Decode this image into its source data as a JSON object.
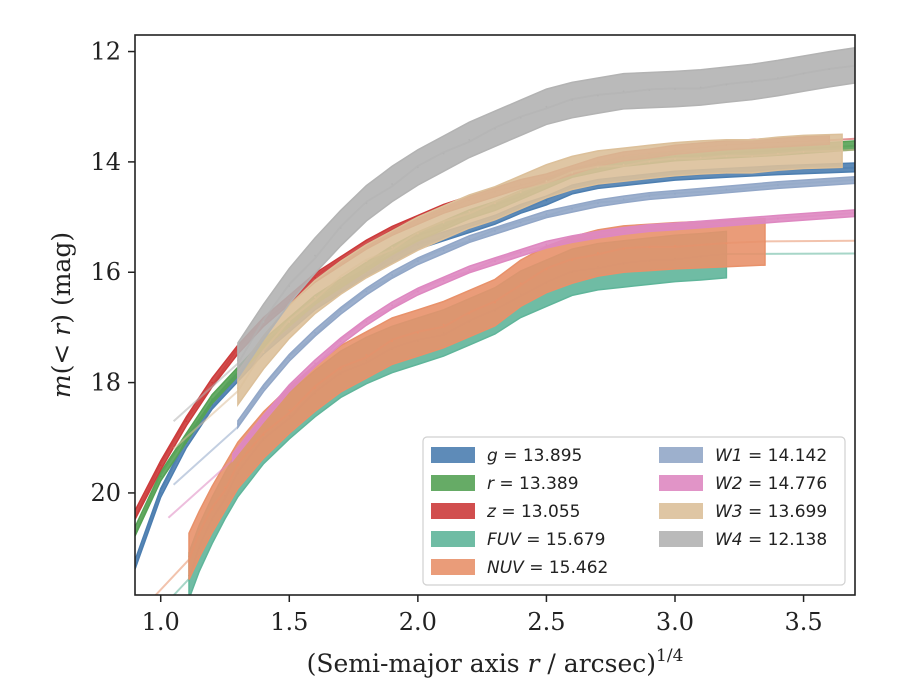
{
  "chart_data": {
    "type": "line",
    "xlabel": "(Semi-major axis r / arcsec)",
    "xlabel_sup": "1/4",
    "ylabel": "m(< r) (mag)",
    "xlim": [
      0.9,
      3.7
    ],
    "ylim": [
      21.85,
      11.7
    ],
    "y_inverted": true,
    "xticks": [
      1.0,
      1.5,
      2.0,
      2.5,
      3.0,
      3.5
    ],
    "xtick_labels": [
      "1.0",
      "1.5",
      "2.0",
      "2.5",
      "3.0",
      "3.5"
    ],
    "yticks": [
      12,
      14,
      16,
      18,
      20
    ],
    "ytick_labels": [
      "12",
      "14",
      "16",
      "18",
      "20"
    ],
    "grid": false,
    "legend_position": "lower-right",
    "legend_columns": 2,
    "series": [
      {
        "name": "g = 13.895",
        "label_var": "g",
        "label_val": "13.895",
        "color": "#4c7eb0",
        "band": 0.08,
        "model_end": 3.7,
        "points": [
          [
            0.9,
            21.3
          ],
          [
            1.0,
            20.0
          ],
          [
            1.1,
            19.1
          ],
          [
            1.2,
            18.4
          ],
          [
            1.3,
            17.9
          ],
          [
            1.4,
            17.4
          ],
          [
            1.5,
            17.0
          ],
          [
            1.6,
            16.6
          ],
          [
            1.7,
            16.3
          ],
          [
            1.8,
            16.0
          ],
          [
            1.9,
            15.75
          ],
          [
            2.0,
            15.5
          ],
          [
            2.1,
            15.35
          ],
          [
            2.2,
            15.2
          ],
          [
            2.3,
            15.05
          ],
          [
            2.4,
            14.85
          ],
          [
            2.5,
            14.7
          ],
          [
            2.6,
            14.5
          ],
          [
            2.7,
            14.4
          ],
          [
            2.8,
            14.35
          ],
          [
            2.9,
            14.3
          ],
          [
            3.0,
            14.25
          ],
          [
            3.2,
            14.2
          ],
          [
            3.4,
            14.15
          ],
          [
            3.7,
            14.1
          ]
        ]
      },
      {
        "name": "r = 13.389",
        "label_var": "r",
        "label_val": "13.389",
        "color": "#55a255",
        "band": 0.08,
        "model_end": 3.7,
        "points": [
          [
            0.9,
            20.7
          ],
          [
            1.0,
            19.7
          ],
          [
            1.1,
            19.0
          ],
          [
            1.2,
            18.3
          ],
          [
            1.3,
            17.8
          ],
          [
            1.4,
            17.3
          ],
          [
            1.5,
            16.9
          ],
          [
            1.6,
            16.5
          ],
          [
            1.7,
            16.2
          ],
          [
            1.8,
            15.9
          ],
          [
            1.9,
            15.6
          ],
          [
            2.0,
            15.35
          ],
          [
            2.1,
            15.15
          ],
          [
            2.2,
            14.95
          ],
          [
            2.3,
            14.8
          ],
          [
            2.4,
            14.6
          ],
          [
            2.5,
            14.4
          ],
          [
            2.6,
            14.2
          ],
          [
            2.7,
            14.1
          ],
          [
            2.8,
            14.0
          ],
          [
            2.9,
            13.95
          ],
          [
            3.0,
            13.9
          ],
          [
            3.2,
            13.85
          ],
          [
            3.4,
            13.8
          ],
          [
            3.7,
            13.7
          ]
        ]
      },
      {
        "name": "z = 13.055",
        "label_var": "z",
        "label_val": "13.055",
        "color": "#cc3b3b",
        "band": 0.08,
        "model_end": 3.7,
        "points": [
          [
            0.9,
            20.4
          ],
          [
            1.0,
            19.5
          ],
          [
            1.1,
            18.7
          ],
          [
            1.2,
            18.0
          ],
          [
            1.3,
            17.4
          ],
          [
            1.4,
            16.9
          ],
          [
            1.5,
            16.5
          ],
          [
            1.6,
            16.1
          ],
          [
            1.7,
            15.8
          ],
          [
            1.8,
            15.5
          ],
          [
            1.9,
            15.25
          ],
          [
            2.0,
            15.05
          ],
          [
            2.1,
            14.85
          ],
          [
            2.2,
            14.7
          ],
          [
            2.3,
            14.55
          ],
          [
            2.4,
            14.4
          ],
          [
            2.5,
            14.3
          ],
          [
            2.6,
            14.15
          ],
          [
            2.7,
            14.0
          ],
          [
            2.8,
            13.9
          ],
          [
            2.9,
            13.85
          ],
          [
            3.0,
            13.78
          ],
          [
            3.2,
            13.7
          ],
          [
            3.4,
            13.65
          ],
          [
            3.6,
            13.6
          ]
        ]
      },
      {
        "name": "FUV = 15.679",
        "label_var": "FUV",
        "label_val": "15.679",
        "color": "#5fb59a",
        "band": 0.42,
        "model_end": 3.7,
        "points": [
          [
            1.11,
            21.5
          ],
          [
            1.15,
            21.0
          ],
          [
            1.2,
            20.5
          ],
          [
            1.25,
            20.05
          ],
          [
            1.3,
            19.65
          ],
          [
            1.4,
            19.05
          ],
          [
            1.5,
            18.6
          ],
          [
            1.6,
            18.2
          ],
          [
            1.7,
            17.85
          ],
          [
            1.8,
            17.6
          ],
          [
            1.9,
            17.4
          ],
          [
            2.0,
            17.25
          ],
          [
            2.1,
            17.1
          ],
          [
            2.2,
            16.9
          ],
          [
            2.3,
            16.7
          ],
          [
            2.4,
            16.4
          ],
          [
            2.5,
            16.2
          ],
          [
            2.6,
            16.0
          ],
          [
            2.7,
            15.9
          ],
          [
            2.8,
            15.85
          ],
          [
            2.9,
            15.8
          ],
          [
            3.0,
            15.75
          ],
          [
            3.1,
            15.72
          ],
          [
            3.2,
            15.68
          ]
        ]
      },
      {
        "name": "NUV = 15.462",
        "label_var": "NUV",
        "label_val": "15.462",
        "color": "#e8916a",
        "band": 0.42,
        "model_end": 3.7,
        "points": [
          [
            1.11,
            21.15
          ],
          [
            1.15,
            20.75
          ],
          [
            1.2,
            20.3
          ],
          [
            1.25,
            19.9
          ],
          [
            1.3,
            19.5
          ],
          [
            1.4,
            18.95
          ],
          [
            1.5,
            18.5
          ],
          [
            1.6,
            18.1
          ],
          [
            1.7,
            17.75
          ],
          [
            1.8,
            17.5
          ],
          [
            1.9,
            17.25
          ],
          [
            2.0,
            17.1
          ],
          [
            2.1,
            16.95
          ],
          [
            2.2,
            16.75
          ],
          [
            2.3,
            16.55
          ],
          [
            2.4,
            16.2
          ],
          [
            2.5,
            15.95
          ],
          [
            2.6,
            15.78
          ],
          [
            2.7,
            15.65
          ],
          [
            2.8,
            15.58
          ],
          [
            2.9,
            15.55
          ],
          [
            3.0,
            15.52
          ],
          [
            3.2,
            15.48
          ],
          [
            3.35,
            15.45
          ]
        ]
      },
      {
        "name": "W1 = 14.142",
        "label_var": "W1",
        "label_val": "14.142",
        "color": "#92a7c8",
        "band": 0.06,
        "model_end": 3.7,
        "points": [
          [
            1.3,
            18.75
          ],
          [
            1.4,
            18.1
          ],
          [
            1.5,
            17.55
          ],
          [
            1.6,
            17.1
          ],
          [
            1.7,
            16.7
          ],
          [
            1.8,
            16.35
          ],
          [
            1.9,
            16.05
          ],
          [
            2.0,
            15.8
          ],
          [
            2.1,
            15.6
          ],
          [
            2.2,
            15.4
          ],
          [
            2.3,
            15.25
          ],
          [
            2.4,
            15.1
          ],
          [
            2.5,
            14.95
          ],
          [
            2.6,
            14.85
          ],
          [
            2.7,
            14.75
          ],
          [
            2.8,
            14.68
          ],
          [
            2.9,
            14.62
          ],
          [
            3.0,
            14.58
          ],
          [
            3.2,
            14.5
          ],
          [
            3.4,
            14.42
          ],
          [
            3.7,
            14.33
          ]
        ]
      },
      {
        "name": "W2 = 14.776",
        "label_var": "W2",
        "label_val": "14.776",
        "color": "#de88c1",
        "band": 0.06,
        "model_end": 3.7,
        "points": [
          [
            1.28,
            19.35
          ],
          [
            1.4,
            18.65
          ],
          [
            1.5,
            18.1
          ],
          [
            1.6,
            17.65
          ],
          [
            1.7,
            17.25
          ],
          [
            1.8,
            16.9
          ],
          [
            1.9,
            16.6
          ],
          [
            2.0,
            16.35
          ],
          [
            2.1,
            16.15
          ],
          [
            2.2,
            15.95
          ],
          [
            2.3,
            15.8
          ],
          [
            2.4,
            15.65
          ],
          [
            2.5,
            15.5
          ],
          [
            2.6,
            15.4
          ],
          [
            2.7,
            15.32
          ],
          [
            2.8,
            15.25
          ],
          [
            2.9,
            15.2
          ],
          [
            3.0,
            15.17
          ],
          [
            3.2,
            15.1
          ],
          [
            3.4,
            15.03
          ],
          [
            3.7,
            14.93
          ]
        ]
      },
      {
        "name": "W3 = 13.699",
        "label_var": "W3",
        "label_val": "13.699",
        "color": "#dcc09a",
        "band": 0.3,
        "model_end": 3.7,
        "points": [
          [
            1.3,
            18.1
          ],
          [
            1.4,
            17.45
          ],
          [
            1.5,
            16.9
          ],
          [
            1.6,
            16.45
          ],
          [
            1.7,
            16.1
          ],
          [
            1.8,
            15.8
          ],
          [
            1.9,
            15.55
          ],
          [
            2.0,
            15.3
          ],
          [
            2.1,
            15.1
          ],
          [
            2.2,
            14.9
          ],
          [
            2.3,
            14.75
          ],
          [
            2.4,
            14.55
          ],
          [
            2.5,
            14.35
          ],
          [
            2.6,
            14.2
          ],
          [
            2.7,
            14.1
          ],
          [
            2.8,
            14.05
          ],
          [
            2.9,
            14.0
          ],
          [
            3.0,
            13.95
          ],
          [
            3.1,
            13.92
          ],
          [
            3.2,
            13.9
          ],
          [
            3.3,
            13.9
          ],
          [
            3.4,
            13.85
          ],
          [
            3.5,
            13.82
          ],
          [
            3.65,
            13.8
          ]
        ]
      },
      {
        "name": "W4 = 12.138",
        "label_var": "W4",
        "label_val": "12.138",
        "color": "#b3b3b3",
        "band": 0.32,
        "model_end": 3.7,
        "points": [
          [
            1.3,
            17.6
          ],
          [
            1.4,
            16.9
          ],
          [
            1.5,
            16.25
          ],
          [
            1.6,
            15.7
          ],
          [
            1.7,
            15.2
          ],
          [
            1.8,
            14.75
          ],
          [
            1.9,
            14.4
          ],
          [
            2.0,
            14.1
          ],
          [
            2.1,
            13.85
          ],
          [
            2.2,
            13.6
          ],
          [
            2.3,
            13.4
          ],
          [
            2.4,
            13.2
          ],
          [
            2.5,
            13.0
          ],
          [
            2.6,
            12.88
          ],
          [
            2.7,
            12.8
          ],
          [
            2.8,
            12.72
          ],
          [
            2.9,
            12.7
          ],
          [
            3.0,
            12.68
          ],
          [
            3.1,
            12.65
          ],
          [
            3.2,
            12.6
          ],
          [
            3.3,
            12.55
          ],
          [
            3.4,
            12.48
          ],
          [
            3.5,
            12.4
          ],
          [
            3.6,
            12.32
          ],
          [
            3.7,
            12.25
          ]
        ]
      }
    ]
  }
}
